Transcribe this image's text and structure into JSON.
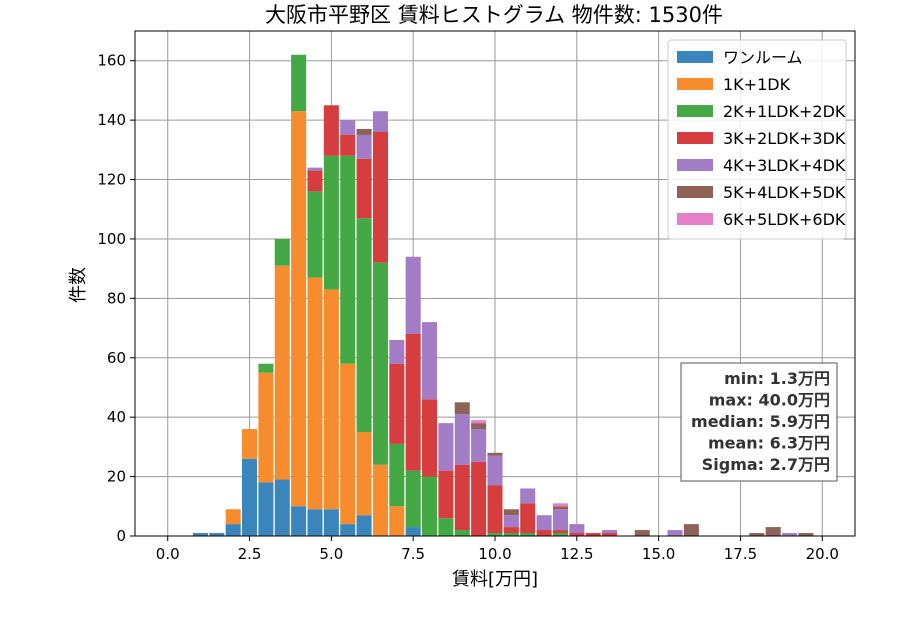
{
  "chart_data": {
    "type": "bar",
    "stacked": true,
    "title": "大阪市平野区 賃料ヒストグラム  物件数: 1530件",
    "xlabel": "賃料[万円]",
    "ylabel": "件数",
    "xlim": [
      -1.0,
      21.0
    ],
    "ylim": [
      0,
      170
    ],
    "xticks": [
      0.0,
      2.5,
      5.0,
      7.5,
      10.0,
      12.5,
      15.0,
      17.5,
      20.0
    ],
    "xtick_labels": [
      "0.0",
      "2.5",
      "5.0",
      "7.5",
      "10.0",
      "12.5",
      "15.0",
      "17.5",
      "20.0"
    ],
    "yticks": [
      0,
      20,
      40,
      60,
      80,
      100,
      120,
      140,
      160
    ],
    "ytick_labels": [
      "0",
      "20",
      "40",
      "60",
      "80",
      "100",
      "120",
      "140",
      "160"
    ],
    "grid": true,
    "legend_position": "top-right",
    "bin_width": 0.5,
    "x": [
      1.0,
      1.5,
      2.0,
      2.5,
      3.0,
      3.5,
      4.0,
      4.5,
      5.0,
      5.5,
      6.0,
      6.5,
      7.0,
      7.5,
      8.0,
      8.5,
      9.0,
      9.5,
      10.0,
      10.5,
      11.0,
      11.5,
      12.0,
      12.5,
      13.0,
      13.5,
      14.0,
      14.5,
      15.0,
      15.5,
      16.0,
      16.5,
      17.0,
      17.5,
      18.0,
      18.5,
      19.0,
      19.5,
      20.0
    ],
    "series": [
      {
        "name": "ワンルーム",
        "color": "#3a85bb",
        "values": [
          1,
          1,
          4,
          26,
          18,
          19,
          10,
          9,
          9,
          4,
          7,
          0,
          0,
          3,
          0,
          0,
          0,
          0,
          0,
          0,
          0,
          0,
          0,
          0,
          0,
          0,
          0,
          0,
          0,
          0,
          0,
          0,
          0,
          0,
          0,
          0,
          0,
          0,
          0
        ]
      },
      {
        "name": "1K+1DK",
        "color": "#f68c2e",
        "values": [
          0,
          0,
          5,
          10,
          37,
          72,
          133,
          78,
          74,
          54,
          28,
          24,
          10,
          0,
          0,
          0,
          0,
          0,
          0,
          0,
          0,
          0,
          0,
          0,
          0,
          0,
          0,
          0,
          0,
          0,
          0,
          0,
          0,
          0,
          0,
          0,
          0,
          0,
          0
        ]
      },
      {
        "name": "2K+1LDK+2DK",
        "color": "#44a844",
        "values": [
          0,
          0,
          0,
          0,
          3,
          9,
          19,
          29,
          45,
          70,
          72,
          68,
          21,
          19,
          20,
          6,
          2,
          0,
          1,
          1,
          1,
          0,
          1,
          0,
          0,
          0,
          0,
          0,
          0,
          0,
          0,
          0,
          0,
          0,
          0,
          0,
          0,
          0,
          0
        ]
      },
      {
        "name": "3K+2LDK+3DK",
        "color": "#d63d3e",
        "values": [
          0,
          0,
          0,
          0,
          0,
          0,
          0,
          7,
          17,
          7,
          20,
          44,
          27,
          46,
          26,
          16,
          22,
          25,
          16,
          2,
          10,
          2,
          1,
          1,
          1,
          1,
          0,
          0,
          0,
          0,
          0,
          0,
          0,
          0,
          0,
          0,
          0,
          0,
          0
        ]
      },
      {
        "name": "4K+3LDK+4DK",
        "color": "#a27cc4",
        "values": [
          0,
          0,
          0,
          0,
          0,
          0,
          0,
          1,
          0,
          5,
          8,
          7,
          8,
          26,
          26,
          16,
          17,
          11,
          10,
          4,
          5,
          5,
          7,
          3,
          0,
          1,
          0,
          0,
          0,
          2,
          0,
          0,
          0,
          0,
          0,
          0,
          1,
          0,
          0
        ]
      },
      {
        "name": "5K+4LDK+5DK",
        "color": "#8e6258",
        "values": [
          0,
          0,
          0,
          0,
          0,
          0,
          0,
          0,
          0,
          0,
          2,
          0,
          0,
          0,
          0,
          0,
          4,
          2,
          1,
          2,
          0,
          0,
          1,
          0,
          0,
          0,
          0,
          2,
          0,
          0,
          4,
          0,
          0,
          0,
          1,
          3,
          0,
          1,
          0
        ]
      },
      {
        "name": "6K+5LDK+6DK",
        "color": "#e67fc7",
        "values": [
          0,
          0,
          0,
          0,
          0,
          0,
          0,
          0,
          0,
          0,
          0,
          0,
          0,
          0,
          0,
          0,
          0,
          1,
          0,
          0,
          0,
          0,
          1,
          0,
          0,
          0,
          0,
          0,
          0,
          0,
          0,
          0,
          0,
          0,
          0,
          0,
          0,
          0,
          0
        ]
      }
    ],
    "stats_box": [
      "min: 1.3万円",
      "max: 40.0万円",
      "median: 5.9万円",
      "mean: 6.3万円",
      "Sigma: 2.7万円"
    ]
  }
}
